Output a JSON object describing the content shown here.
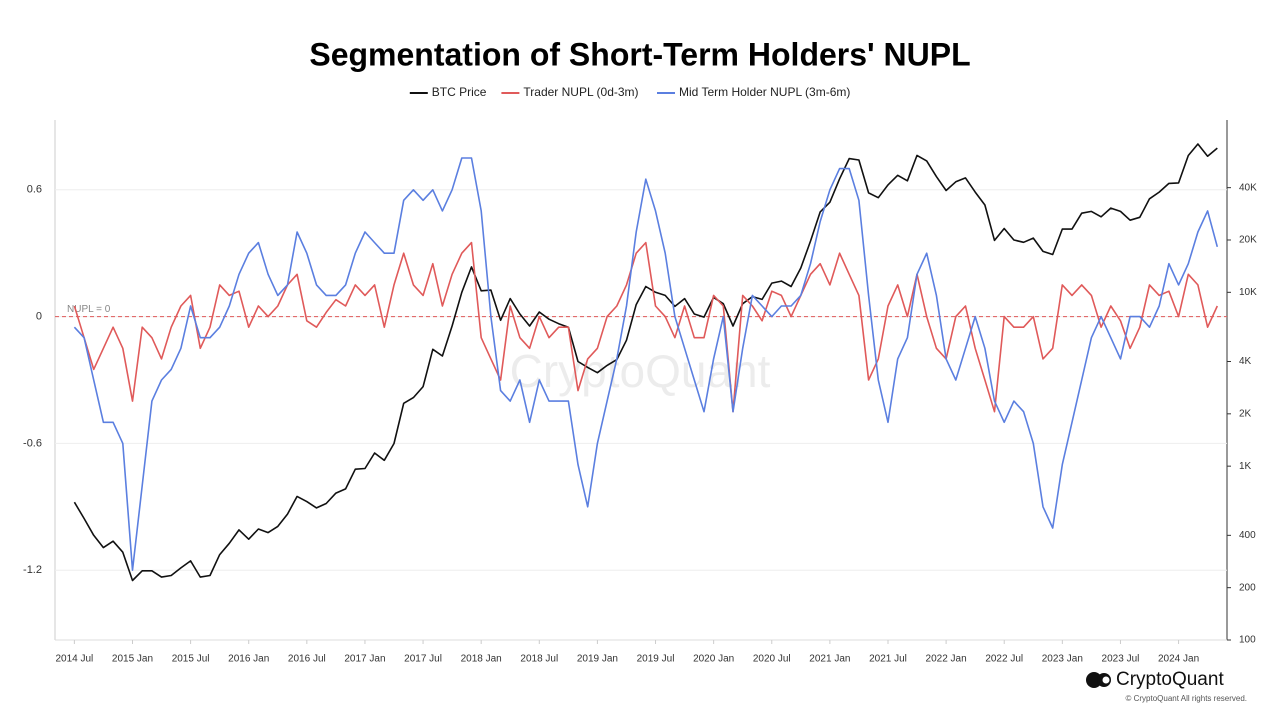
{
  "chart_data": {
    "type": "line",
    "title": "Segmentation of Short-Term Holders' NUPL",
    "watermark": "CryptoQuant",
    "brand": "CryptoQuant",
    "copyright": "© CryptoQuant All rights reserved.",
    "reference_line": {
      "value": 0,
      "label": "NUPL = 0"
    },
    "grid": true,
    "legend": "top",
    "xlim": [
      "2014-05",
      "2024-06"
    ],
    "xticks": [
      {
        "value": "2014-07",
        "label": "2014 Jul"
      },
      {
        "value": "2015-01",
        "label": "2015 Jan"
      },
      {
        "value": "2015-07",
        "label": "2015 Jul"
      },
      {
        "value": "2016-01",
        "label": "2016 Jan"
      },
      {
        "value": "2016-07",
        "label": "2016 Jul"
      },
      {
        "value": "2017-01",
        "label": "2017 Jan"
      },
      {
        "value": "2017-07",
        "label": "2017 Jul"
      },
      {
        "value": "2018-01",
        "label": "2018 Jan"
      },
      {
        "value": "2018-07",
        "label": "2018 Jul"
      },
      {
        "value": "2019-01",
        "label": "2019 Jan"
      },
      {
        "value": "2019-07",
        "label": "2019 Jul"
      },
      {
        "value": "2020-01",
        "label": "2020 Jan"
      },
      {
        "value": "2020-07",
        "label": "2020 Jul"
      },
      {
        "value": "2021-01",
        "label": "2021 Jan"
      },
      {
        "value": "2021-07",
        "label": "2021 Jul"
      },
      {
        "value": "2022-01",
        "label": "2022 Jan"
      },
      {
        "value": "2022-07",
        "label": "2022 Jul"
      },
      {
        "value": "2023-01",
        "label": "2023 Jan"
      },
      {
        "value": "2023-07",
        "label": "2023 Jul"
      },
      {
        "value": "2024-01",
        "label": "2024 Jan"
      }
    ],
    "ylim": [
      -1.53,
      0.93
    ],
    "yticks": [
      -1.2,
      -0.6,
      0,
      0.6
    ],
    "y2lim": [
      100,
      98000
    ],
    "y2scale": "log",
    "y2ticks": [
      100,
      200,
      400,
      {
        "value": 1000,
        "label": "1K"
      },
      {
        "value": 2000,
        "label": "2K"
      },
      {
        "value": 4000,
        "label": "4K"
      },
      {
        "value": 10000,
        "label": "10K"
      },
      {
        "value": 20000,
        "label": "20K"
      },
      {
        "value": 40000,
        "label": "40K"
      }
    ],
    "x": [
      "2014-07",
      "2014-08",
      "2014-09",
      "2014-10",
      "2014-11",
      "2014-12",
      "2015-01",
      "2015-02",
      "2015-03",
      "2015-04",
      "2015-05",
      "2015-06",
      "2015-07",
      "2015-08",
      "2015-09",
      "2015-10",
      "2015-11",
      "2015-12",
      "2016-01",
      "2016-02",
      "2016-03",
      "2016-04",
      "2016-05",
      "2016-06",
      "2016-07",
      "2016-08",
      "2016-09",
      "2016-10",
      "2016-11",
      "2016-12",
      "2017-01",
      "2017-02",
      "2017-03",
      "2017-04",
      "2017-05",
      "2017-06",
      "2017-07",
      "2017-08",
      "2017-09",
      "2017-10",
      "2017-11",
      "2017-12",
      "2018-01",
      "2018-02",
      "2018-03",
      "2018-04",
      "2018-05",
      "2018-06",
      "2018-07",
      "2018-08",
      "2018-09",
      "2018-10",
      "2018-11",
      "2018-12",
      "2019-01",
      "2019-02",
      "2019-03",
      "2019-04",
      "2019-05",
      "2019-06",
      "2019-07",
      "2019-08",
      "2019-09",
      "2019-10",
      "2019-11",
      "2019-12",
      "2020-01",
      "2020-02",
      "2020-03",
      "2020-04",
      "2020-05",
      "2020-06",
      "2020-07",
      "2020-08",
      "2020-09",
      "2020-10",
      "2020-11",
      "2020-12",
      "2021-01",
      "2021-02",
      "2021-03",
      "2021-04",
      "2021-05",
      "2021-06",
      "2021-07",
      "2021-08",
      "2021-09",
      "2021-10",
      "2021-11",
      "2021-12",
      "2022-01",
      "2022-02",
      "2022-03",
      "2022-04",
      "2022-05",
      "2022-06",
      "2022-07",
      "2022-08",
      "2022-09",
      "2022-10",
      "2022-11",
      "2022-12",
      "2023-01",
      "2023-02",
      "2023-03",
      "2023-04",
      "2023-05",
      "2023-06",
      "2023-07",
      "2023-08",
      "2023-09",
      "2023-10",
      "2023-11",
      "2023-12",
      "2024-01",
      "2024-02",
      "2024-03",
      "2024-04",
      "2024-05"
    ],
    "series": [
      {
        "name": "BTC Price",
        "color": "#111111",
        "axis": "y2",
        "values": [
          620,
          500,
          400,
          340,
          370,
          320,
          220,
          250,
          250,
          230,
          235,
          260,
          285,
          230,
          235,
          310,
          360,
          430,
          380,
          435,
          415,
          450,
          530,
          670,
          625,
          575,
          610,
          700,
          740,
          960,
          970,
          1190,
          1080,
          1350,
          2300,
          2480,
          2870,
          4700,
          4300,
          6400,
          10000,
          14000,
          10200,
          10300,
          6900,
          9200,
          7500,
          6400,
          7700,
          7000,
          6600,
          6300,
          4000,
          3700,
          3450,
          3800,
          4100,
          5300,
          8500,
          10800,
          10000,
          9600,
          8300,
          9200,
          7500,
          7200,
          9350,
          8600,
          6400,
          8600,
          9450,
          9100,
          11300,
          11600,
          10800,
          13800,
          19700,
          29000,
          33000,
          45000,
          58800,
          57700,
          37300,
          35000,
          41500,
          47100,
          43800,
          61300,
          57000,
          46300,
          38500,
          43200,
          45500,
          37700,
          31800,
          19900,
          23300,
          20000,
          19400,
          20500,
          17200,
          16500,
          23100,
          23100,
          28500,
          29200,
          27200,
          30500,
          29200,
          26000,
          27000,
          34500,
          37700,
          42300,
          42600,
          61200,
          71300,
          60700,
          67500
        ]
      },
      {
        "name": "Trader NUPL (0d-3m)",
        "color": "#e05a5a",
        "values": [
          0.05,
          -0.1,
          -0.25,
          -0.15,
          -0.05,
          -0.15,
          -0.4,
          -0.05,
          -0.1,
          -0.2,
          -0.05,
          0.05,
          0.1,
          -0.15,
          -0.05,
          0.15,
          0.1,
          0.12,
          -0.05,
          0.05,
          0,
          0.05,
          0.15,
          0.2,
          -0.02,
          -0.05,
          0.02,
          0.08,
          0.05,
          0.15,
          0.1,
          0.15,
          -0.05,
          0.15,
          0.3,
          0.15,
          0.1,
          0.25,
          0.05,
          0.2,
          0.3,
          0.35,
          -0.1,
          -0.2,
          -0.3,
          0.05,
          -0.1,
          -0.15,
          0,
          -0.1,
          -0.05,
          -0.05,
          -0.35,
          -0.2,
          -0.15,
          0,
          0.05,
          0.15,
          0.3,
          0.35,
          0.05,
          0,
          -0.1,
          0.05,
          -0.1,
          -0.1,
          0.1,
          0.05,
          -0.45,
          0.1,
          0.05,
          -0.02,
          0.12,
          0.1,
          0,
          0.1,
          0.2,
          0.25,
          0.15,
          0.3,
          0.2,
          0.1,
          -0.3,
          -0.2,
          0.05,
          0.15,
          0,
          0.2,
          0,
          -0.15,
          -0.2,
          0,
          0.05,
          -0.15,
          -0.3,
          -0.45,
          0,
          -0.05,
          -0.05,
          0,
          -0.2,
          -0.15,
          0.15,
          0.1,
          0.15,
          0.1,
          -0.05,
          0.05,
          -0.02,
          -0.15,
          -0.05,
          0.15,
          0.1,
          0.12,
          0,
          0.2,
          0.15,
          -0.05,
          0.05
        ]
      },
      {
        "name": "Mid Term Holder NUPL (3m-6m)",
        "color": "#5b7fe0",
        "values": [
          -0.05,
          -0.1,
          -0.3,
          -0.5,
          -0.5,
          -0.6,
          -1.2,
          -0.8,
          -0.4,
          -0.3,
          -0.25,
          -0.15,
          0.05,
          -0.1,
          -0.1,
          -0.05,
          0.05,
          0.2,
          0.3,
          0.35,
          0.2,
          0.1,
          0.15,
          0.4,
          0.3,
          0.15,
          0.1,
          0.1,
          0.15,
          0.3,
          0.4,
          0.35,
          0.3,
          0.3,
          0.55,
          0.6,
          0.55,
          0.6,
          0.5,
          0.6,
          0.75,
          0.75,
          0.5,
          0,
          -0.35,
          -0.4,
          -0.3,
          -0.5,
          -0.3,
          -0.4,
          -0.4,
          -0.4,
          -0.7,
          -0.9,
          -0.6,
          -0.4,
          -0.2,
          0.05,
          0.4,
          0.65,
          0.5,
          0.3,
          0,
          -0.15,
          -0.3,
          -0.45,
          -0.2,
          0,
          -0.45,
          -0.15,
          0.1,
          0.05,
          0,
          0.05,
          0.05,
          0.1,
          0.25,
          0.45,
          0.6,
          0.7,
          0.7,
          0.55,
          0.1,
          -0.3,
          -0.5,
          -0.2,
          -0.1,
          0.2,
          0.3,
          0.1,
          -0.2,
          -0.3,
          -0.15,
          0,
          -0.15,
          -0.4,
          -0.5,
          -0.4,
          -0.45,
          -0.6,
          -0.9,
          -1,
          -0.7,
          -0.5,
          -0.3,
          -0.1,
          0,
          -0.1,
          -0.2,
          0,
          0,
          -0.05,
          0.05,
          0.25,
          0.15,
          0.25,
          0.4,
          0.5,
          0.33
        ]
      }
    ]
  }
}
